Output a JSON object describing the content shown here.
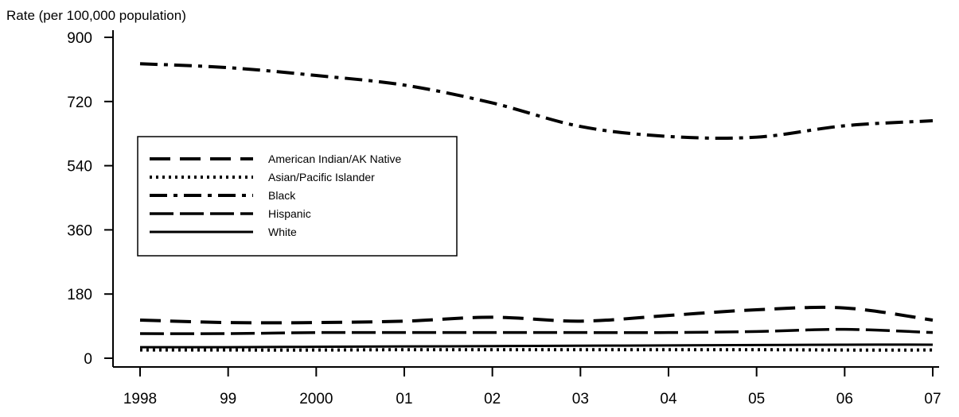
{
  "chart_data": {
    "type": "line",
    "title": "",
    "xlabel": "",
    "ylabel": "Rate (per 100,000 population)",
    "ylim": [
      0,
      900
    ],
    "yticks": [
      "0",
      "180",
      "360",
      "540",
      "720",
      "900"
    ],
    "ytick_values": [
      0,
      180,
      360,
      540,
      720,
      900
    ],
    "categories": [
      "1998",
      "99",
      "2000",
      "01",
      "02",
      "03",
      "04",
      "05",
      "06",
      "07"
    ],
    "grid": false,
    "legend_position": "left",
    "series": [
      {
        "name": "American Indian/AK Native",
        "line_style": "long-dash",
        "values": [
          107,
          100,
          100,
          104,
          115,
          104,
          120,
          136,
          141,
          107
        ]
      },
      {
        "name": "Asian/Pacific Islander",
        "line_style": "dash-dot-dot",
        "values": [
          23,
          23,
          23,
          24,
          24,
          24,
          24,
          24,
          23,
          23
        ]
      },
      {
        "name": "Black",
        "line_style": "dash-dot",
        "values": [
          826,
          815,
          793,
          766,
          716,
          650,
          622,
          620,
          652,
          666
        ]
      },
      {
        "name": "Hispanic",
        "line_style": "long-dash-short-gap",
        "values": [
          69,
          69,
          72,
          72,
          72,
          72,
          72,
          75,
          81,
          72
        ]
      },
      {
        "name": "White",
        "line_style": "solid",
        "values": [
          31,
          31,
          32,
          33,
          34,
          35,
          36,
          37,
          38,
          38
        ]
      }
    ]
  },
  "colors": {
    "line": "#000000",
    "background": "#ffffff"
  }
}
